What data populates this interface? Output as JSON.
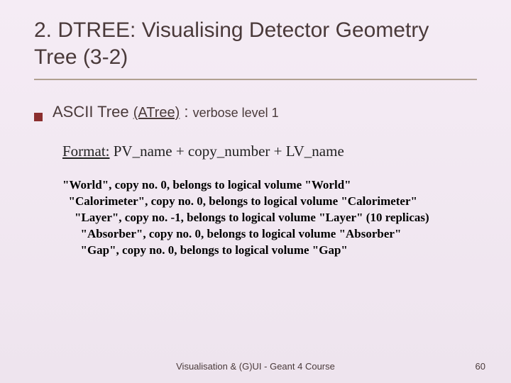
{
  "title": "2. DTREE: Visualising Detector Geometry Tree (3-2)",
  "bullet": {
    "label": "ASCII Tree",
    "paren": "(ATree)",
    "sep": " : ",
    "tail": "verbose level 1"
  },
  "format": {
    "label": "Format:",
    "rest": "  PV_name  +  copy_number + LV_name"
  },
  "tree": [
    "\"World\", copy no. 0, belongs to logical volume \"World\"",
    "  \"Calorimeter\", copy no. 0, belongs to logical volume \"Calorimeter\"",
    "    \"Layer\", copy no. -1, belongs to logical volume \"Layer\" (10 replicas)",
    "      \"Absorber\", copy no. 0, belongs to logical volume \"Absorber\"",
    "      \"Gap\", copy no. 0, belongs to logical volume \"Gap\""
  ],
  "footer": "Visualisation & (G)UI - Geant 4 Course",
  "page": "60",
  "colors": {
    "background_top": "#f5ecf5",
    "background_bottom": "#eee4ee",
    "title_color": "#4a3a3a",
    "bullet_color": "#8b2e2e",
    "rule_color": "#b0a090"
  }
}
